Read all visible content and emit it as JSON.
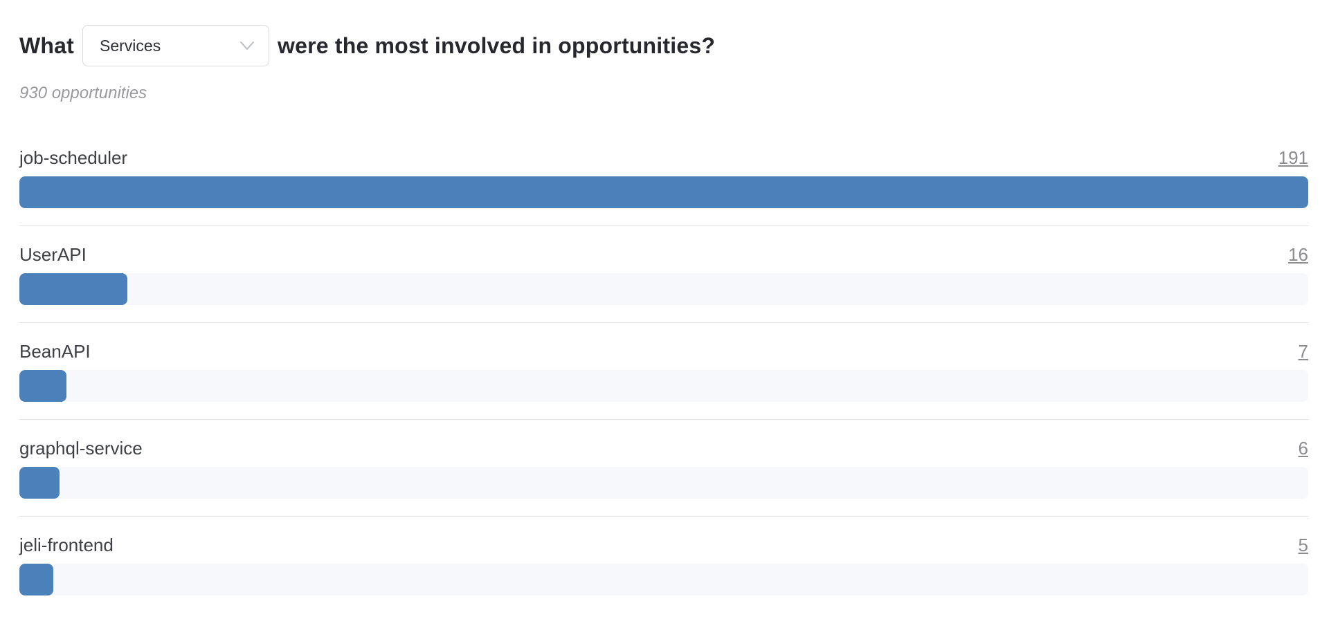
{
  "header": {
    "title_prefix": "What",
    "title_suffix": "were the most involved in opportunities?",
    "dropdown": {
      "value": "Services",
      "icon": "chevron-down-icon"
    }
  },
  "subtitle": "930 opportunities",
  "chart_data": {
    "type": "bar",
    "orientation": "horizontal",
    "title": "What Services were the most involved in opportunities?",
    "subtitle": "930 opportunities",
    "categories": [
      "job-scheduler",
      "UserAPI",
      "BeanAPI",
      "graphql-service",
      "jeli-frontend"
    ],
    "values": [
      191,
      16,
      7,
      6,
      5
    ],
    "value_labels_underlined_links": true,
    "xlim": [
      0,
      191
    ],
    "grid": false,
    "legend": false
  },
  "colors": {
    "bar": "#4a81ba",
    "bar_track": "#f6f8fc",
    "divider": "#e2e2e5",
    "title_text": "#26282e",
    "label_text": "#3e4046",
    "value_text": "#8b8b90",
    "subtitle_text": "#98989d",
    "dropdown_border": "#d8dadd"
  }
}
